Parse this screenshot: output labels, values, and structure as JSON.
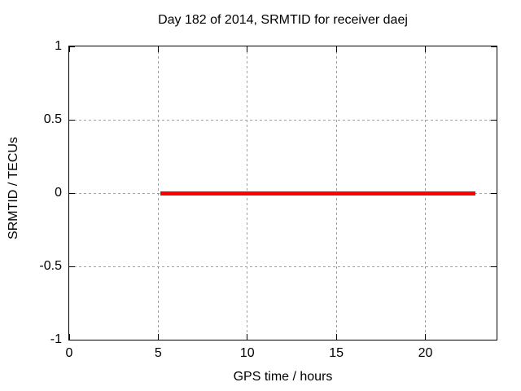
{
  "title": "Day 182 of 2014, SRMTID for receiver daej",
  "colors": {
    "background": "#ffffff",
    "axis": "#000000",
    "grid": "#a0a0a0",
    "series": "#ff0000",
    "text": "#000000"
  },
  "chart_data": {
    "type": "line",
    "title": "Day 182 of 2014, SRMTID for receiver daej",
    "xlabel": "GPS time / hours",
    "ylabel": "SRMTID / TECUs",
    "xlim": [
      0,
      24
    ],
    "ylim": [
      -1,
      1
    ],
    "xticks": [
      0,
      5,
      10,
      15,
      20
    ],
    "yticks": [
      1,
      0.5,
      0,
      -0.5,
      -1
    ],
    "grid": true,
    "legend": "none",
    "series": [
      {
        "name": "SRMTID",
        "color": "#ff0000",
        "linewidth": 5,
        "x": [
          5.1,
          22.8
        ],
        "y": [
          0,
          0
        ],
        "note": "constant zero value from ~5.1 h to ~22.8 h GPS time"
      }
    ]
  }
}
